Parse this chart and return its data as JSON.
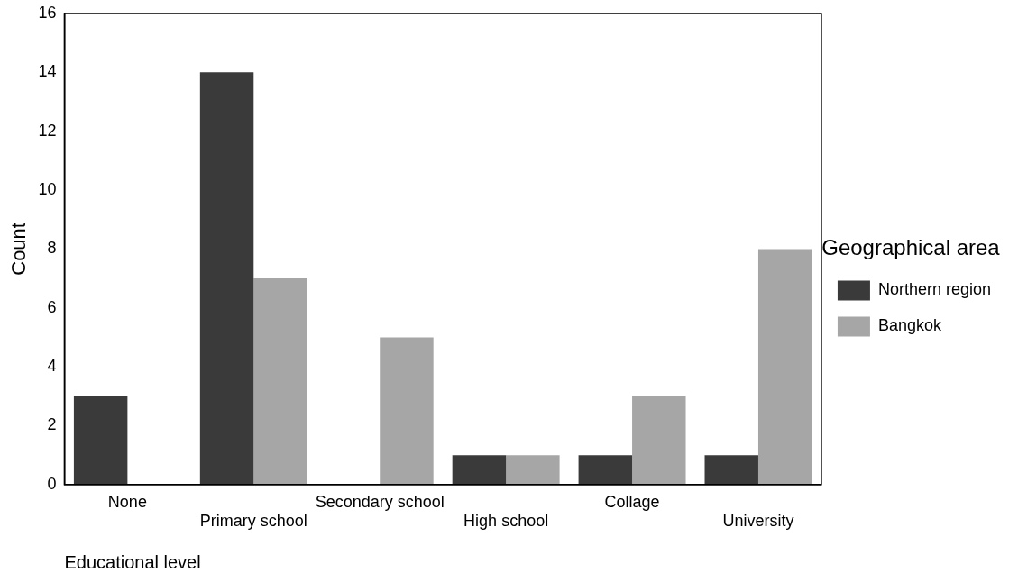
{
  "chart_data": {
    "type": "bar",
    "xlabel": "Educational level",
    "ylabel": "Count",
    "legend_title": "Geographical area",
    "legend": "right",
    "categories": [
      "None",
      "Primary school",
      "Secondary school",
      "High school",
      "Collage",
      "University"
    ],
    "series": [
      {
        "name": "Northern region",
        "color": "#3a3a3a",
        "values": [
          3,
          14,
          0,
          1,
          1,
          1
        ]
      },
      {
        "name": "Bangkok",
        "color": "#a6a6a6",
        "values": [
          0,
          7,
          5,
          1,
          3,
          8
        ]
      }
    ],
    "ylim": [
      0,
      16
    ],
    "yticks": [
      0,
      2,
      4,
      6,
      8,
      10,
      12,
      14,
      16
    ]
  }
}
